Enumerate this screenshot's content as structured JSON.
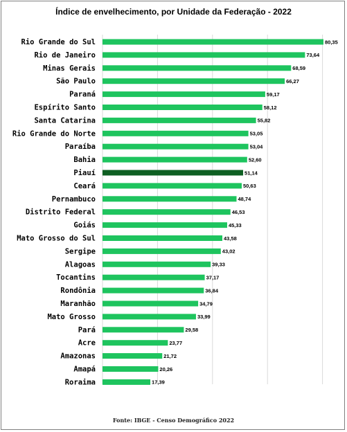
{
  "chart_data": {
    "type": "bar",
    "orientation": "horizontal",
    "title": "Índice de envelhecimento, por Unidade da Federação - 2022",
    "categories": [
      "Rio Grande do Sul",
      "Rio de Janeiro",
      "Minas Gerais",
      "São Paulo",
      "Paraná",
      "Espírito Santo",
      "Santa Catarina",
      "Rio Grande do Norte",
      "Paraíba",
      "Bahia",
      "Piauí",
      "Ceará",
      "Pernambuco",
      "Distrito Federal",
      "Goiás",
      "Mato Grosso do Sul",
      "Sergipe",
      "Alagoas",
      "Tocantins",
      "Rondônia",
      "Maranhão",
      "Mato Grosso",
      "Pará",
      "Acre",
      "Amazonas",
      "Amapá",
      "Roraima"
    ],
    "values": [
      80.35,
      73.64,
      68.59,
      66.27,
      59.17,
      58.12,
      55.82,
      53.05,
      53.04,
      52.6,
      51.14,
      50.63,
      48.74,
      46.53,
      45.33,
      43.58,
      43.02,
      39.33,
      37.17,
      36.84,
      34.79,
      33.99,
      29.58,
      23.77,
      21.72,
      20.26,
      17.39
    ],
    "value_labels": [
      "80,35",
      "73,64",
      "68,59",
      "66,27",
      "59,17",
      "58,12",
      "55,82",
      "53,05",
      "53,04",
      "52,60",
      "51,14",
      "50,63",
      "48,74",
      "46,53",
      "45,33",
      "43,58",
      "43,02",
      "39,33",
      "37,17",
      "36,84",
      "34,79",
      "33,99",
      "29,58",
      "23,77",
      "21,72",
      "20,26",
      "17,39"
    ],
    "highlight": "Piauí",
    "xlim": [
      0,
      80.35
    ],
    "grid": true,
    "colors": {
      "bar": "#1ec45e",
      "highlight": "#0e5f22",
      "grid": "#d9d9d9"
    }
  },
  "source": "Fonte: IBGE - Censo Demográfico 2022"
}
